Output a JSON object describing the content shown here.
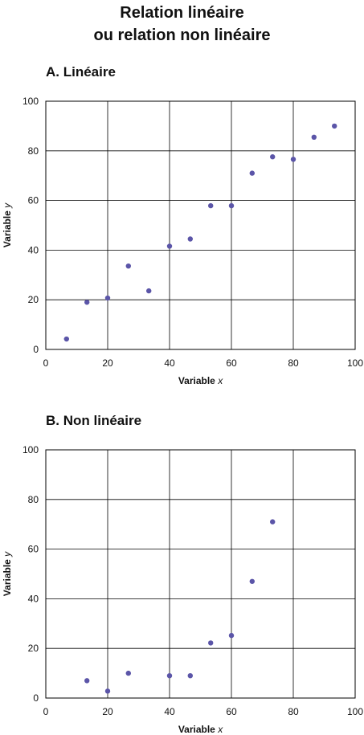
{
  "page": {
    "title_line1": "Relation linéaire",
    "title_line2": "ou relation non linéaire"
  },
  "chart_data": [
    {
      "type": "scatter",
      "title": "A.  Linéaire",
      "xlabel": "Variable x",
      "ylabel": "Variable y",
      "xlim": [
        0,
        100
      ],
      "ylim": [
        0,
        100
      ],
      "xticks": [
        0,
        20,
        40,
        60,
        80,
        100
      ],
      "yticks": [
        0,
        20,
        40,
        60,
        80,
        100
      ],
      "grid": true,
      "point_color": "#5b55a8",
      "points": [
        {
          "x": 6.7,
          "y": 4.2
        },
        {
          "x": 13.3,
          "y": 19
        },
        {
          "x": 20,
          "y": 20.7
        },
        {
          "x": 26.7,
          "y": 33.6
        },
        {
          "x": 33.3,
          "y": 23.6
        },
        {
          "x": 40,
          "y": 41.6
        },
        {
          "x": 46.7,
          "y": 44.5
        },
        {
          "x": 53.3,
          "y": 57.9
        },
        {
          "x": 60,
          "y": 57.9
        },
        {
          "x": 66.7,
          "y": 71
        },
        {
          "x": 73.3,
          "y": 77.6
        },
        {
          "x": 80,
          "y": 76.6
        },
        {
          "x": 86.7,
          "y": 85.5
        },
        {
          "x": 93.3,
          "y": 90
        }
      ]
    },
    {
      "type": "scatter",
      "title": "B.  Non linéaire",
      "xlabel": "Variable x",
      "ylabel": "Variable y",
      "xlim": [
        0,
        100
      ],
      "ylim": [
        0,
        100
      ],
      "xticks": [
        0,
        20,
        40,
        60,
        80,
        100
      ],
      "yticks": [
        0,
        20,
        40,
        60,
        80,
        100
      ],
      "grid": true,
      "point_color": "#5b55a8",
      "points": [
        {
          "x": 13.3,
          "y": 7
        },
        {
          "x": 20,
          "y": 2.8
        },
        {
          "x": 26.7,
          "y": 10
        },
        {
          "x": 40,
          "y": 9
        },
        {
          "x": 46.7,
          "y": 9
        },
        {
          "x": 53.3,
          "y": 22.2
        },
        {
          "x": 60,
          "y": 25.2
        },
        {
          "x": 66.7,
          "y": 47
        },
        {
          "x": 73.3,
          "y": 71
        }
      ]
    }
  ]
}
